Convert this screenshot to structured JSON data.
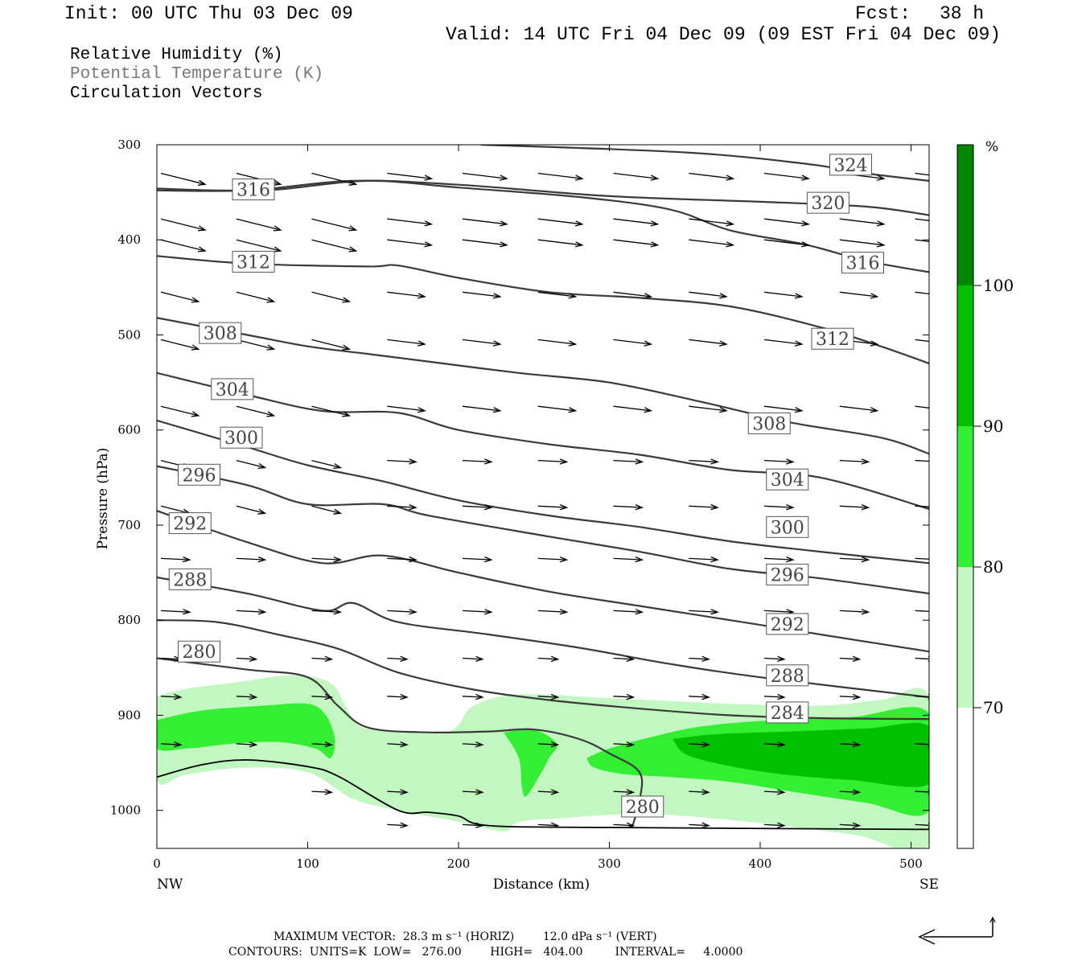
{
  "header": {
    "init": "Init: 00 UTC Thu 03 Dec 09",
    "fcst_label": "Fcst:",
    "fcst_value": "38 h",
    "valid": "Valid: 14 UTC Fri 04 Dec 09 (09 EST Fri 04 Dec 09)"
  },
  "legend": {
    "rh": "Relative Humidity (%)",
    "theta": "Potential Temperature (K)",
    "vectors": "Circulation Vectors"
  },
  "footer": {
    "maxvec": "MAXIMUM VECTOR:  28.3 m s⁻¹ (HORIZ)        12.0 dPa s⁻¹ (VERT)",
    "contours": "CONTOURS:  UNITS=K  LOW=   276.00        HIGH=   404.00         INTERVAL=     4.0000"
  },
  "colors": {
    "rh70": "#c2f7c2",
    "rh80": "#33ee33",
    "rh90": "#00c000",
    "rh100": "#008800",
    "contour": "#3a3a3a"
  },
  "chart_data": {
    "type": "cross-section",
    "xlabel": "Distance (km)",
    "ylabel": "Pressure (hPa)",
    "x_start_label": "NW",
    "x_end_label": "SE",
    "xlim": [
      0,
      512
    ],
    "ylim": [
      1040,
      300
    ],
    "xticks": [
      0,
      100,
      200,
      300,
      400,
      500
    ],
    "yticks": [
      300,
      400,
      500,
      600,
      700,
      800,
      900,
      1000
    ],
    "colorbar": {
      "unit": "%",
      "levels": [
        70,
        80,
        90,
        100
      ],
      "colors": [
        "#ffffff",
        "#c2f7c2",
        "#33ee33",
        "#00c000",
        "#008800"
      ]
    },
    "theta_contours": [
      {
        "value": 324,
        "points": [
          [
            215,
            300
          ],
          [
            350,
            308
          ],
          [
            430,
            320
          ],
          [
            470,
            330
          ],
          [
            512,
            338
          ]
        ],
        "labels": [
          [
            460,
            321
          ]
        ]
      },
      {
        "value": 320,
        "points": [
          [
            0,
            348
          ],
          [
            60,
            348
          ],
          [
            130,
            338
          ],
          [
            200,
            342
          ],
          [
            300,
            354
          ],
          [
            400,
            360
          ],
          [
            470,
            365
          ],
          [
            512,
            374
          ]
        ],
        "labels": [
          [
            445,
            361
          ]
        ]
      },
      {
        "value": 316,
        "points": [
          [
            0,
            346
          ],
          [
            40,
            348
          ],
          [
            80,
            347
          ],
          [
            140,
            338
          ],
          [
            200,
            345
          ],
          [
            280,
            355
          ],
          [
            340,
            368
          ],
          [
            380,
            390
          ],
          [
            430,
            405
          ],
          [
            470,
            422
          ],
          [
            512,
            434
          ]
        ],
        "labels": [
          [
            64,
            347
          ],
          [
            468,
            424
          ]
        ]
      },
      {
        "value": 312,
        "points": [
          [
            0,
            417
          ],
          [
            60,
            425
          ],
          [
            140,
            428
          ],
          [
            160,
            427
          ],
          [
            200,
            440
          ],
          [
            260,
            455
          ],
          [
            320,
            461
          ],
          [
            380,
            470
          ],
          [
            440,
            492
          ],
          [
            480,
            512
          ],
          [
            512,
            530
          ]
        ],
        "labels": [
          [
            64,
            423
          ],
          [
            448,
            504
          ]
        ]
      },
      {
        "value": 308,
        "points": [
          [
            0,
            482
          ],
          [
            60,
            500
          ],
          [
            100,
            512
          ],
          [
            140,
            520
          ],
          [
            180,
            528
          ],
          [
            240,
            540
          ],
          [
            300,
            550
          ],
          [
            360,
            570
          ],
          [
            420,
            592
          ],
          [
            480,
            608
          ],
          [
            512,
            625
          ]
        ],
        "labels": [
          [
            42,
            498
          ],
          [
            406,
            593
          ]
        ]
      },
      {
        "value": 304,
        "points": [
          [
            0,
            540
          ],
          [
            60,
            563
          ],
          [
            110,
            580
          ],
          [
            160,
            582
          ],
          [
            200,
            600
          ],
          [
            260,
            615
          ],
          [
            320,
            626
          ],
          [
            380,
            642
          ],
          [
            440,
            650
          ],
          [
            512,
            683
          ]
        ],
        "labels": [
          [
            50,
            557
          ],
          [
            418,
            652
          ]
        ]
      },
      {
        "value": 300,
        "points": [
          [
            0,
            590
          ],
          [
            60,
            618
          ],
          [
            100,
            637
          ],
          [
            150,
            654
          ],
          [
            200,
            674
          ],
          [
            260,
            690
          ],
          [
            320,
            702
          ],
          [
            380,
            717
          ],
          [
            440,
            728
          ],
          [
            512,
            740
          ]
        ],
        "labels": [
          [
            56,
            608
          ],
          [
            418,
            702
          ]
        ]
      },
      {
        "value": 296,
        "points": [
          [
            0,
            638
          ],
          [
            60,
            658
          ],
          [
            100,
            678
          ],
          [
            150,
            678
          ],
          [
            180,
            690
          ],
          [
            260,
            712
          ],
          [
            320,
            728
          ],
          [
            380,
            746
          ],
          [
            440,
            756
          ],
          [
            512,
            772
          ]
        ],
        "labels": [
          [
            28,
            647
          ],
          [
            418,
            752
          ]
        ]
      },
      {
        "value": 292,
        "points": [
          [
            0,
            685
          ],
          [
            60,
            718
          ],
          [
            110,
            740
          ],
          [
            150,
            732
          ],
          [
            200,
            750
          ],
          [
            260,
            770
          ],
          [
            320,
            785
          ],
          [
            380,
            800
          ],
          [
            440,
            815
          ],
          [
            512,
            833
          ]
        ],
        "labels": [
          [
            22,
            698
          ],
          [
            418,
            804
          ]
        ]
      },
      {
        "value": 288,
        "points": [
          [
            0,
            755
          ],
          [
            60,
            772
          ],
          [
            110,
            790
          ],
          [
            130,
            782
          ],
          [
            160,
            802
          ],
          [
            220,
            815
          ],
          [
            280,
            829
          ],
          [
            340,
            846
          ],
          [
            400,
            860
          ],
          [
            512,
            881
          ]
        ],
        "labels": [
          [
            22,
            757
          ],
          [
            418,
            858
          ]
        ]
      },
      {
        "value": 284,
        "points": [
          [
            0,
            800
          ],
          [
            40,
            802
          ],
          [
            80,
            815
          ],
          [
            120,
            830
          ],
          [
            160,
            855
          ],
          [
            210,
            873
          ],
          [
            260,
            884
          ],
          [
            320,
            893
          ],
          [
            380,
            900
          ],
          [
            440,
            903
          ],
          [
            512,
            904
          ]
        ],
        "labels": [
          [
            418,
            897
          ]
        ]
      },
      {
        "value": 280,
        "points": [
          [
            0,
            840
          ],
          [
            60,
            852
          ],
          [
            100,
            860
          ],
          [
            120,
            890
          ],
          [
            140,
            913
          ],
          [
            180,
            918
          ],
          [
            220,
            917
          ],
          [
            250,
            915
          ],
          [
            280,
            925
          ],
          [
            300,
            940
          ],
          [
            320,
            960
          ],
          [
            320,
            990
          ],
          [
            315,
            1018
          ]
        ],
        "labels": [
          [
            28,
            833
          ],
          [
            322,
            996
          ]
        ]
      }
    ],
    "terrain_surface_hpa": [
      [
        0,
        965
      ],
      [
        30,
        952
      ],
      [
        60,
        947
      ],
      [
        100,
        954
      ],
      [
        120,
        964
      ],
      [
        160,
        1000
      ],
      [
        180,
        1002
      ],
      [
        200,
        1006
      ],
      [
        220,
        1016
      ],
      [
        300,
        1018
      ],
      [
        512,
        1020
      ]
    ],
    "max_vector": {
      "horizontal_m_s": 28.3,
      "vertical_dPa_s": 12.0
    },
    "contour_units": "K",
    "contour_low": 276.0,
    "contour_high": 404.0,
    "contour_interval": 4.0
  }
}
